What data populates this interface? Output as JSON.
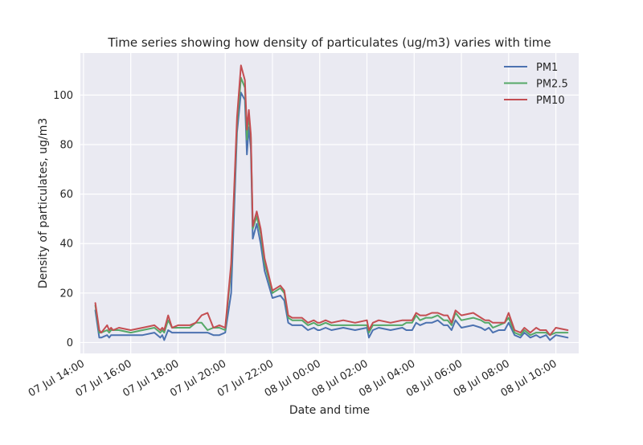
{
  "chart_data": {
    "type": "line",
    "title": "Time series showing how density of particulates (ug/m3) varies with time",
    "xlabel": "Date and time",
    "ylabel": "Density of particulates, ug/m3",
    "x_axis": "time",
    "xlim": [
      "2019-07-07 13:52",
      "2019-07-08 10:58"
    ],
    "ylim": [
      -4.4,
      117
    ],
    "grid": true,
    "legend_position": "top-right",
    "xticks": [
      "07 Jul 14:00",
      "07 Jul 16:00",
      "07 Jul 18:00",
      "07 Jul 20:00",
      "07 Jul 22:00",
      "08 Jul 00:00",
      "08 Jul 02:00",
      "08 Jul 04:00",
      "08 Jul 06:00",
      "08 Jul 08:00",
      "08 Jul 10:00"
    ],
    "yticks": [
      0,
      20,
      40,
      60,
      80,
      100
    ],
    "x": [
      "07-07 14:30",
      "07-07 14:40",
      "07-07 14:45",
      "07-07 15:00",
      "07-07 15:05",
      "07-07 15:10",
      "07-07 15:15",
      "07-07 15:30",
      "07-07 16:00",
      "07-07 16:30",
      "07-07 17:00",
      "07-07 17:15",
      "07-07 17:20",
      "07-07 17:25",
      "07-07 17:35",
      "07-07 17:45",
      "07-07 18:00",
      "07-07 18:30",
      "07-07 18:45",
      "07-07 19:00",
      "07-07 19:15",
      "07-07 19:30",
      "07-07 19:45",
      "07-07 20:00",
      "07-07 20:15",
      "07-07 20:30",
      "07-07 20:40",
      "07-07 20:50",
      "07-07 20:55",
      "07-07 21:00",
      "07-07 21:05",
      "07-07 21:10",
      "07-07 21:20",
      "07-07 21:30",
      "07-07 21:40",
      "07-07 22:00",
      "07-07 22:20",
      "07-07 22:30",
      "07-07 22:40",
      "07-07 22:50",
      "07-07 23:00",
      "07-07 23:15",
      "07-07 23:30",
      "07-07 23:45",
      "07-07 23:55",
      "08-07 00:00",
      "08-07 00:15",
      "08-07 00:30",
      "08-07 01:00",
      "08-07 01:30",
      "08-07 02:00",
      "08-07 02:05",
      "08-07 02:15",
      "08-07 02:30",
      "08-07 03:00",
      "08-07 03:30",
      "08-07 03:40",
      "08-07 03:55",
      "08-07 04:05",
      "08-07 04:15",
      "08-07 04:30",
      "08-07 04:45",
      "08-07 05:00",
      "08-07 05:15",
      "08-07 05:25",
      "08-07 05:35",
      "08-07 05:45",
      "08-07 06:00",
      "08-07 06:30",
      "08-07 06:50",
      "08-07 07:00",
      "08-07 07:10",
      "08-07 07:20",
      "08-07 07:35",
      "08-07 07:50",
      "08-07 08:00",
      "08-07 08:15",
      "08-07 08:30",
      "08-07 08:40",
      "08-07 08:55",
      "08-07 09:10",
      "08-07 09:20",
      "08-07 09:35",
      "08-07 09:45",
      "08-07 10:00",
      "08-07 10:30"
    ],
    "series": [
      {
        "name": "PM1",
        "color": "#4c72b0",
        "values": [
          13,
          2,
          2,
          3,
          2,
          3,
          3,
          3,
          3,
          3,
          4,
          2,
          3,
          1,
          5,
          4,
          4,
          4,
          4,
          4,
          4,
          3,
          3,
          4,
          20,
          85,
          101,
          98,
          76,
          87,
          78,
          42,
          48,
          40,
          29,
          18,
          19,
          17,
          8,
          7,
          7,
          7,
          5,
          6,
          5,
          5,
          6,
          5,
          6,
          5,
          6,
          2,
          5,
          6,
          5,
          6,
          5,
          5,
          8,
          7,
          8,
          8,
          9,
          7,
          7,
          5,
          9,
          6,
          7,
          6,
          5,
          6,
          4,
          5,
          5,
          8,
          3,
          2,
          4,
          2,
          3,
          2,
          3,
          1,
          3,
          2
        ]
      },
      {
        "name": "PM2.5",
        "color": "#55a868",
        "values": [
          15,
          4,
          4,
          5,
          4,
          5,
          5,
          5,
          4,
          5,
          6,
          4,
          5,
          4,
          9,
          6,
          6,
          6,
          8,
          8,
          5,
          6,
          6,
          5,
          30,
          88,
          107,
          103,
          82,
          92,
          83,
          46,
          51,
          44,
          32,
          20,
          22,
          20,
          10,
          9,
          9,
          9,
          7,
          8,
          7,
          7,
          8,
          7,
          7,
          7,
          7,
          4,
          7,
          7,
          7,
          7,
          8,
          8,
          11,
          9,
          10,
          10,
          11,
          9,
          9,
          7,
          12,
          9,
          10,
          9,
          8,
          8,
          6,
          7,
          8,
          10,
          4,
          3,
          5,
          3,
          4,
          4,
          4,
          3,
          4,
          4
        ]
      },
      {
        "name": "PM10",
        "color": "#c44e52",
        "values": [
          16,
          5,
          4,
          7,
          5,
          6,
          5,
          6,
          5,
          6,
          7,
          5,
          6,
          5,
          11,
          6,
          7,
          7,
          8,
          11,
          12,
          6,
          7,
          6,
          32,
          91,
          112,
          106,
          86,
          94,
          84,
          47,
          53,
          46,
          34,
          21,
          23,
          21,
          11,
          10,
          10,
          10,
          8,
          9,
          8,
          8,
          9,
          8,
          9,
          8,
          9,
          5,
          8,
          9,
          8,
          9,
          9,
          9,
          12,
          11,
          11,
          12,
          12,
          11,
          11,
          8,
          13,
          11,
          12,
          10,
          9,
          9,
          8,
          8,
          8,
          12,
          5,
          4,
          6,
          4,
          6,
          5,
          5,
          3,
          6,
          5
        ]
      }
    ]
  }
}
